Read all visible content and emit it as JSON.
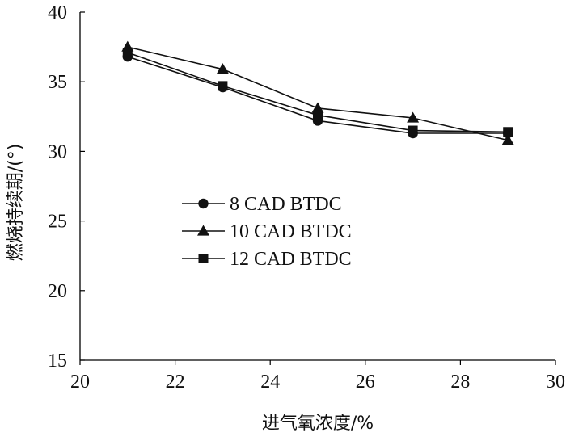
{
  "chart_data": {
    "type": "line",
    "xlabel": "进气氧浓度/%",
    "ylabel": "燃烧持续期/(°)",
    "xlim": [
      20,
      30
    ],
    "ylim": [
      15,
      40
    ],
    "xticks": [
      20,
      22,
      24,
      26,
      28,
      30
    ],
    "yticks": [
      15,
      20,
      25,
      30,
      35,
      40
    ],
    "grid": false,
    "legend_position": "center-left",
    "series": [
      {
        "name": "8 CAD BTDC",
        "marker": "circle",
        "x": [
          21,
          23,
          25,
          27,
          29
        ],
        "values": [
          36.8,
          34.6,
          32.2,
          31.3,
          31.3
        ]
      },
      {
        "name": "10 CAD BTDC",
        "marker": "triangle",
        "x": [
          21,
          23,
          25,
          27,
          29
        ],
        "values": [
          37.5,
          35.9,
          33.1,
          32.4,
          30.8
        ]
      },
      {
        "name": "12 CAD BTDC",
        "marker": "square",
        "x": [
          21,
          23,
          25,
          27,
          29
        ],
        "values": [
          37.1,
          34.7,
          32.6,
          31.5,
          31.4
        ]
      }
    ]
  }
}
